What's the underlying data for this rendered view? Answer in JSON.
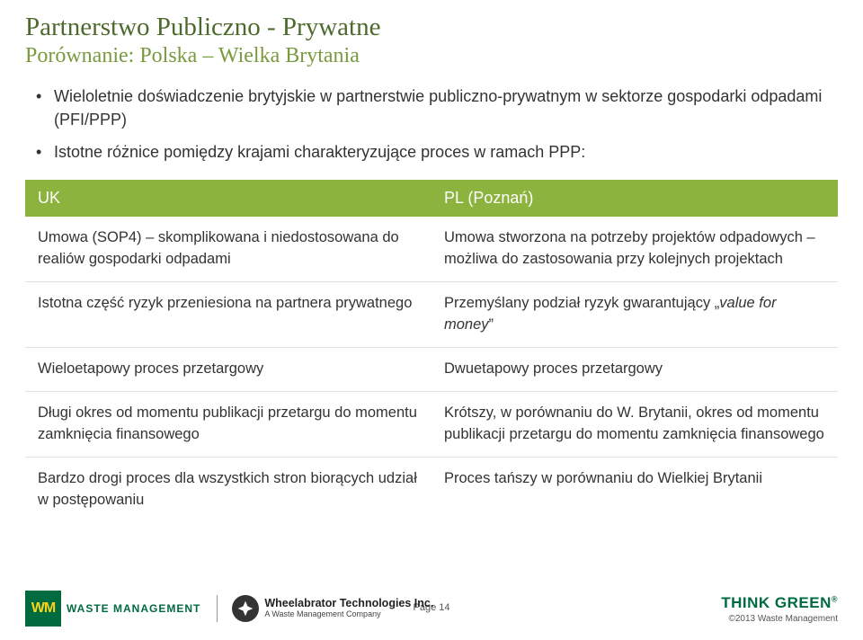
{
  "title": "Partnerstwo Publiczno - Prywatne",
  "subtitle": "Porównanie: Polska – Wielka Brytania",
  "bullets": [
    "Wieloletnie doświadczenie brytyjskie w partnerstwie publiczno-prywatnym w sektorze gospodarki odpadami (PFI/PPP)",
    "Istotne różnice pomiędzy krajami charakteryzujące proces w ramach PPP:"
  ],
  "table": {
    "headers": [
      "UK",
      "PL (Poznań)"
    ],
    "rows": [
      [
        "Umowa (SOP4) – skomplikowana i niedostosowana do realiów gospodarki odpadami",
        "Umowa stworzona na potrzeby projektów odpadowych – możliwa do zastosowania przy kolejnych projektach"
      ],
      [
        "Istotna część ryzyk przeniesiona na partnera prywatnego",
        "Przemyślany podział ryzyk gwarantujący „<em>value for money</em>”"
      ],
      [
        "Wieloetapowy proces przetargowy",
        "Dwuetapowy proces przetargowy"
      ],
      [
        "Długi okres od momentu publikacji przetargu do momentu zamknięcia finansowego",
        "Krótszy, w porównaniu do W. Brytanii, okres od momentu publikacji przetargu do momentu zamknięcia finansowego"
      ],
      [
        "Bardzo drogi proces dla wszystkich stron biorących udział w postępowaniu",
        "Proces tańszy w porównaniu do Wielkiej Brytanii"
      ]
    ]
  },
  "footer": {
    "wm_initials": "WM",
    "wm_name_top": "WASTE MANAGEMENT",
    "wheel_name": "Wheelabrator Technologies Inc.",
    "wheel_sub": "A Waste Management Company",
    "page": "Page 14",
    "think_green": "THINK GREEN",
    "reg": "®",
    "copyright": "©2013 Waste Management"
  },
  "colors": {
    "title": "#4d6a2d",
    "subtitle": "#7a9a3f",
    "header_bg": "#8bb33d",
    "wm_green": "#006b3f",
    "wm_yellow": "#fbd31b"
  }
}
